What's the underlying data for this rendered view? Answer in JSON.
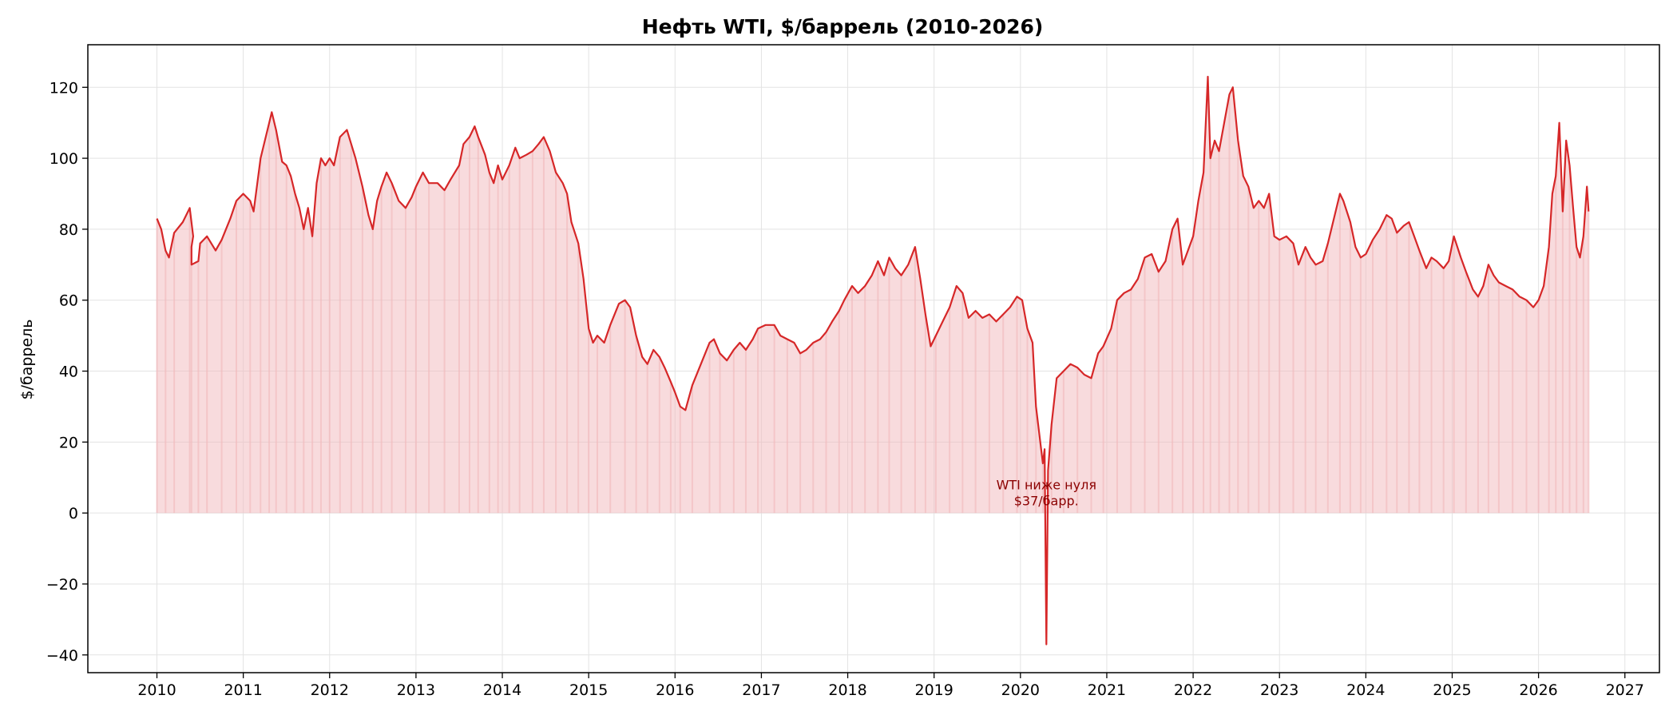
{
  "chart_data": {
    "type": "line",
    "title": "Нефть WTI, $/баррель (2010-2026)",
    "xlabel": "",
    "ylabel": "$/баррель",
    "xlim": [
      2009.2,
      2027.4
    ],
    "ylim": [
      -45,
      132
    ],
    "x_ticks": [
      2010,
      2011,
      2012,
      2013,
      2014,
      2015,
      2016,
      2017,
      2018,
      2019,
      2020,
      2021,
      2022,
      2023,
      2024,
      2025,
      2026,
      2027
    ],
    "y_ticks": [
      -40,
      -20,
      0,
      20,
      40,
      60,
      80,
      100,
      120
    ],
    "grid": true,
    "line_color": "#d62728",
    "fill_color": "#f2b8bb",
    "annotation": {
      "lines": [
        "WTI ниже нуля",
        "$37/барр."
      ],
      "x": 2020.3,
      "y": 4
    },
    "series": [
      {
        "points": [
          [
            2010.0,
            83
          ],
          [
            2010.05,
            80
          ],
          [
            2010.1,
            74
          ],
          [
            2010.14,
            72
          ],
          [
            2010.2,
            79
          ],
          [
            2010.3,
            82
          ],
          [
            2010.38,
            86
          ],
          [
            2010.42,
            78
          ],
          [
            2010.4,
            75
          ],
          [
            2010.4,
            70
          ],
          [
            2010.48,
            71
          ],
          [
            2010.5,
            76
          ],
          [
            2010.58,
            78
          ],
          [
            2010.68,
            74
          ],
          [
            2010.75,
            77
          ],
          [
            2010.85,
            83
          ],
          [
            2010.92,
            88
          ],
          [
            2011.0,
            90
          ],
          [
            2011.08,
            88
          ],
          [
            2011.12,
            85
          ],
          [
            2011.2,
            100
          ],
          [
            2011.25,
            105
          ],
          [
            2011.3,
            110
          ],
          [
            2011.33,
            113
          ],
          [
            2011.38,
            108
          ],
          [
            2011.45,
            99
          ],
          [
            2011.5,
            98
          ],
          [
            2011.55,
            95
          ],
          [
            2011.6,
            90
          ],
          [
            2011.65,
            86
          ],
          [
            2011.7,
            80
          ],
          [
            2011.75,
            86
          ],
          [
            2011.8,
            78
          ],
          [
            2011.85,
            93
          ],
          [
            2011.9,
            100
          ],
          [
            2011.95,
            98
          ],
          [
            2012.0,
            100
          ],
          [
            2012.05,
            98
          ],
          [
            2012.12,
            106
          ],
          [
            2012.2,
            108
          ],
          [
            2012.25,
            104
          ],
          [
            2012.3,
            100
          ],
          [
            2012.38,
            92
          ],
          [
            2012.45,
            84
          ],
          [
            2012.5,
            80
          ],
          [
            2012.55,
            88
          ],
          [
            2012.6,
            92
          ],
          [
            2012.66,
            96
          ],
          [
            2012.72,
            93
          ],
          [
            2012.8,
            88
          ],
          [
            2012.88,
            86
          ],
          [
            2012.95,
            89
          ],
          [
            2013.0,
            92
          ],
          [
            2013.08,
            96
          ],
          [
            2013.15,
            93
          ],
          [
            2013.25,
            93
          ],
          [
            2013.33,
            91
          ],
          [
            2013.4,
            94
          ],
          [
            2013.5,
            98
          ],
          [
            2013.55,
            104
          ],
          [
            2013.62,
            106
          ],
          [
            2013.68,
            109
          ],
          [
            2013.72,
            106
          ],
          [
            2013.8,
            101
          ],
          [
            2013.85,
            96
          ],
          [
            2013.9,
            93
          ],
          [
            2013.95,
            98
          ],
          [
            2014.0,
            94
          ],
          [
            2014.08,
            98
          ],
          [
            2014.15,
            103
          ],
          [
            2014.2,
            100
          ],
          [
            2014.28,
            101
          ],
          [
            2014.35,
            102
          ],
          [
            2014.42,
            104
          ],
          [
            2014.48,
            106
          ],
          [
            2014.55,
            102
          ],
          [
            2014.62,
            96
          ],
          [
            2014.7,
            93
          ],
          [
            2014.75,
            90
          ],
          [
            2014.8,
            82
          ],
          [
            2014.88,
            76
          ],
          [
            2014.94,
            66
          ],
          [
            2015.0,
            52
          ],
          [
            2015.05,
            48
          ],
          [
            2015.1,
            50
          ],
          [
            2015.18,
            48
          ],
          [
            2015.25,
            53
          ],
          [
            2015.35,
            59
          ],
          [
            2015.42,
            60
          ],
          [
            2015.48,
            58
          ],
          [
            2015.55,
            50
          ],
          [
            2015.62,
            44
          ],
          [
            2015.68,
            42
          ],
          [
            2015.75,
            46
          ],
          [
            2015.82,
            44
          ],
          [
            2015.88,
            41
          ],
          [
            2015.95,
            37
          ],
          [
            2016.0,
            34
          ],
          [
            2016.06,
            30
          ],
          [
            2016.12,
            29
          ],
          [
            2016.2,
            36
          ],
          [
            2016.3,
            42
          ],
          [
            2016.4,
            48
          ],
          [
            2016.45,
            49
          ],
          [
            2016.52,
            45
          ],
          [
            2016.6,
            43
          ],
          [
            2016.68,
            46
          ],
          [
            2016.75,
            48
          ],
          [
            2016.82,
            46
          ],
          [
            2016.9,
            49
          ],
          [
            2016.96,
            52
          ],
          [
            2017.05,
            53
          ],
          [
            2017.15,
            53
          ],
          [
            2017.22,
            50
          ],
          [
            2017.3,
            49
          ],
          [
            2017.38,
            48
          ],
          [
            2017.45,
            45
          ],
          [
            2017.52,
            46
          ],
          [
            2017.6,
            48
          ],
          [
            2017.68,
            49
          ],
          [
            2017.75,
            51
          ],
          [
            2017.82,
            54
          ],
          [
            2017.9,
            57
          ],
          [
            2017.96,
            60
          ],
          [
            2018.05,
            64
          ],
          [
            2018.12,
            62
          ],
          [
            2018.2,
            64
          ],
          [
            2018.28,
            67
          ],
          [
            2018.35,
            71
          ],
          [
            2018.42,
            67
          ],
          [
            2018.48,
            72
          ],
          [
            2018.55,
            69
          ],
          [
            2018.62,
            67
          ],
          [
            2018.7,
            70
          ],
          [
            2018.78,
            75
          ],
          [
            2018.84,
            66
          ],
          [
            2018.9,
            56
          ],
          [
            2018.96,
            47
          ],
          [
            2019.02,
            50
          ],
          [
            2019.1,
            54
          ],
          [
            2019.18,
            58
          ],
          [
            2019.26,
            64
          ],
          [
            2019.33,
            62
          ],
          [
            2019.4,
            55
          ],
          [
            2019.48,
            57
          ],
          [
            2019.56,
            55
          ],
          [
            2019.64,
            56
          ],
          [
            2019.72,
            54
          ],
          [
            2019.8,
            56
          ],
          [
            2019.88,
            58
          ],
          [
            2019.96,
            61
          ],
          [
            2020.02,
            60
          ],
          [
            2020.08,
            52
          ],
          [
            2020.14,
            48
          ],
          [
            2020.18,
            30
          ],
          [
            2020.22,
            22
          ],
          [
            2020.26,
            14
          ],
          [
            2020.28,
            18
          ],
          [
            2020.3,
            -37
          ],
          [
            2020.32,
            12
          ],
          [
            2020.36,
            25
          ],
          [
            2020.42,
            38
          ],
          [
            2020.5,
            40
          ],
          [
            2020.58,
            42
          ],
          [
            2020.66,
            41
          ],
          [
            2020.74,
            39
          ],
          [
            2020.82,
            38
          ],
          [
            2020.9,
            45
          ],
          [
            2020.96,
            47
          ],
          [
            2021.05,
            52
          ],
          [
            2021.12,
            60
          ],
          [
            2021.2,
            62
          ],
          [
            2021.28,
            63
          ],
          [
            2021.36,
            66
          ],
          [
            2021.44,
            72
          ],
          [
            2021.52,
            73
          ],
          [
            2021.6,
            68
          ],
          [
            2021.68,
            71
          ],
          [
            2021.76,
            80
          ],
          [
            2021.82,
            83
          ],
          [
            2021.88,
            70
          ],
          [
            2021.94,
            74
          ],
          [
            2022.0,
            78
          ],
          [
            2022.06,
            88
          ],
          [
            2022.12,
            96
          ],
          [
            2022.17,
            123
          ],
          [
            2022.2,
            100
          ],
          [
            2022.25,
            105
          ],
          [
            2022.3,
            102
          ],
          [
            2022.36,
            110
          ],
          [
            2022.42,
            118
          ],
          [
            2022.46,
            120
          ],
          [
            2022.52,
            105
          ],
          [
            2022.58,
            95
          ],
          [
            2022.64,
            92
          ],
          [
            2022.7,
            86
          ],
          [
            2022.76,
            88
          ],
          [
            2022.82,
            86
          ],
          [
            2022.88,
            90
          ],
          [
            2022.94,
            78
          ],
          [
            2023.0,
            77
          ],
          [
            2023.08,
            78
          ],
          [
            2023.16,
            76
          ],
          [
            2023.22,
            70
          ],
          [
            2023.3,
            75
          ],
          [
            2023.36,
            72
          ],
          [
            2023.42,
            70
          ],
          [
            2023.5,
            71
          ],
          [
            2023.56,
            76
          ],
          [
            2023.62,
            82
          ],
          [
            2023.7,
            90
          ],
          [
            2023.74,
            88
          ],
          [
            2023.82,
            82
          ],
          [
            2023.88,
            75
          ],
          [
            2023.94,
            72
          ],
          [
            2024.0,
            73
          ],
          [
            2024.08,
            77
          ],
          [
            2024.16,
            80
          ],
          [
            2024.24,
            84
          ],
          [
            2024.3,
            83
          ],
          [
            2024.36,
            79
          ],
          [
            2024.44,
            81
          ],
          [
            2024.5,
            82
          ],
          [
            2024.56,
            78
          ],
          [
            2024.62,
            74
          ],
          [
            2024.7,
            69
          ],
          [
            2024.76,
            72
          ],
          [
            2024.82,
            71
          ],
          [
            2024.9,
            69
          ],
          [
            2024.96,
            71
          ],
          [
            2025.02,
            78
          ],
          [
            2025.1,
            72
          ],
          [
            2025.16,
            68
          ],
          [
            2025.24,
            63
          ],
          [
            2025.3,
            61
          ],
          [
            2025.36,
            64
          ],
          [
            2025.42,
            70
          ],
          [
            2025.48,
            67
          ],
          [
            2025.54,
            65
          ],
          [
            2025.62,
            64
          ],
          [
            2025.7,
            63
          ],
          [
            2025.78,
            61
          ],
          [
            2025.86,
            60
          ],
          [
            2025.94,
            58
          ],
          [
            2026.0,
            60
          ],
          [
            2026.06,
            64
          ],
          [
            2026.12,
            75
          ],
          [
            2026.16,
            90
          ],
          [
            2026.2,
            95
          ],
          [
            2026.24,
            110
          ],
          [
            2026.28,
            85
          ],
          [
            2026.32,
            105
          ],
          [
            2026.36,
            98
          ],
          [
            2026.4,
            86
          ],
          [
            2026.44,
            75
          ],
          [
            2026.48,
            72
          ],
          [
            2026.52,
            78
          ],
          [
            2026.56,
            92
          ],
          [
            2026.58,
            85
          ]
        ]
      }
    ]
  }
}
